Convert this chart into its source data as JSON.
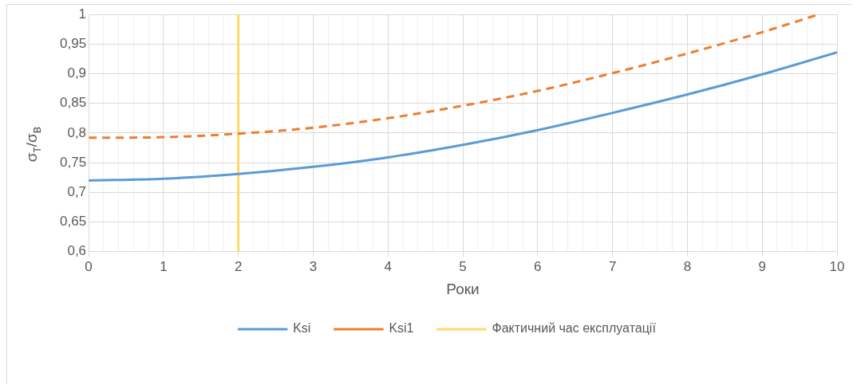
{
  "chart_data": {
    "type": "line",
    "xlabel": "Роки",
    "ylabel": "σ$_{т}$/σ$_{в}$",
    "series": [
      {
        "name": "Ksi",
        "color": "#5b9bd5",
        "line_style": "solid",
        "x": [
          0,
          1,
          2,
          3,
          4,
          5,
          6,
          7,
          8,
          9,
          10
        ],
        "values": [
          0.72,
          0.723,
          0.731,
          0.743,
          0.759,
          0.78,
          0.805,
          0.834,
          0.865,
          0.899,
          0.936
        ]
      },
      {
        "name": "Ksi1",
        "color": "#ed7d31",
        "line_style": "dashed",
        "x": [
          0,
          1,
          2,
          3,
          4,
          5,
          6,
          7,
          8,
          9,
          9.76
        ],
        "values": [
          0.792,
          0.793,
          0.799,
          0.809,
          0.825,
          0.846,
          0.871,
          0.901,
          0.934,
          0.97,
          1.0
        ]
      },
      {
        "name": "Фактичний час експлуатації",
        "color": "#ffd966",
        "line_style": "solid",
        "x": [
          2,
          2
        ],
        "values": [
          0.6,
          1.0
        ]
      }
    ],
    "xlim": [
      0,
      10
    ],
    "xticks": [
      0,
      {
        "value": 0.2,
        "label": null
      },
      {
        "value": 0.4,
        "label": null
      },
      {
        "value": 0.6,
        "label": null
      },
      {
        "value": 0.8,
        "label": null
      },
      1,
      {
        "value": 1.2,
        "label": null
      },
      {
        "value": 1.4,
        "label": null
      },
      {
        "value": 1.6,
        "label": null
      },
      {
        "value": 1.8,
        "label": null
      },
      2,
      {
        "value": 2.2,
        "label": null
      },
      {
        "value": 2.4,
        "label": null
      },
      {
        "value": 2.6,
        "label": null
      },
      {
        "value": 2.8,
        "label": null
      },
      3,
      {
        "value": 3.2,
        "label": null
      },
      {
        "value": 3.4,
        "label": null
      },
      {
        "value": 3.6,
        "label": null
      },
      {
        "value": 3.8,
        "label": null
      },
      4,
      {
        "value": 4.2,
        "label": null
      },
      {
        "value": 4.4,
        "label": null
      },
      {
        "value": 4.6,
        "label": null
      },
      {
        "value": 4.8,
        "label": null
      },
      5,
      {
        "value": 5.2,
        "label": null
      },
      {
        "value": 5.4,
        "label": null
      },
      {
        "value": 5.6,
        "label": null
      },
      {
        "value": 5.8,
        "label": null
      },
      6,
      {
        "value": 6.2,
        "label": null
      },
      {
        "value": 6.4,
        "label": null
      },
      {
        "value": 6.6,
        "label": null
      },
      {
        "value": 6.8,
        "label": null
      },
      7,
      {
        "value": 7.2,
        "label": null
      },
      {
        "value": 7.4,
        "label": null
      },
      {
        "value": 7.6,
        "label": null
      },
      {
        "value": 7.8,
        "label": null
      },
      8,
      {
        "value": 8.2,
        "label": null
      },
      {
        "value": 8.4,
        "label": null
      },
      {
        "value": 8.6,
        "label": null
      },
      {
        "value": 8.8,
        "label": null
      },
      9,
      {
        "value": 9.2,
        "label": null
      },
      {
        "value": 9.4,
        "label": null
      },
      {
        "value": 9.6,
        "label": null
      },
      {
        "value": 9.8,
        "label": null
      },
      10
    ],
    "ylim": [
      0.6,
      1
    ],
    "yticks": [
      {
        "value": 0.6,
        "label": "0,6"
      },
      {
        "value": 0.65,
        "label": "0,65"
      },
      {
        "value": 0.7,
        "label": "0,7"
      },
      {
        "value": 0.75,
        "label": "0,75"
      },
      {
        "value": 0.8,
        "label": "0,8"
      },
      {
        "value": 0.85,
        "label": "0,85"
      },
      {
        "value": 0.9,
        "label": "0,9"
      },
      {
        "value": 0.95,
        "label": "0,95"
      },
      {
        "value": 1,
        "label": "1"
      }
    ],
    "grid": true,
    "legend": "bottom",
    "marker": "none"
  }
}
